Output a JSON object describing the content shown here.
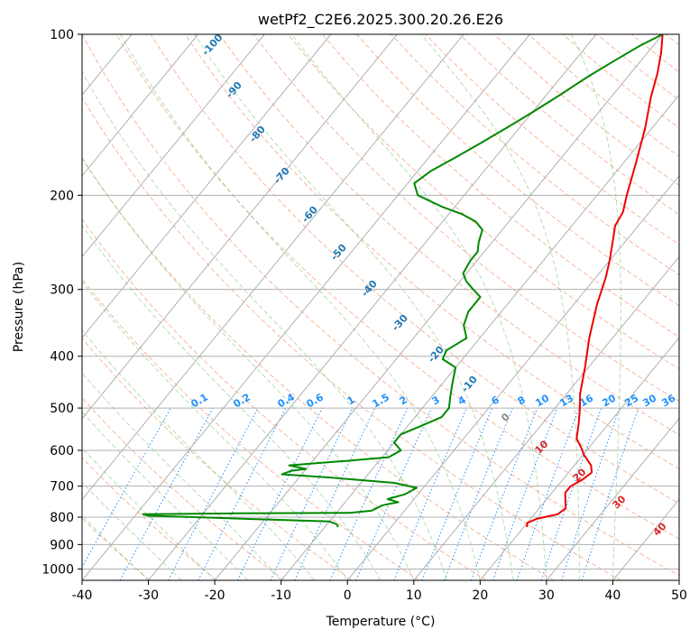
{
  "chart_data": {
    "type": "line",
    "title": "wetPf2_C2E6.2025.300.20.26.E26",
    "xlabel": "Temperature (°C)",
    "ylabel": "Pressure (hPa)",
    "xlim": [
      -40,
      50
    ],
    "ylim": [
      1050,
      100
    ],
    "y_scale": "log",
    "x_ticks": [
      -40,
      -30,
      -20,
      -10,
      0,
      10,
      20,
      30,
      40,
      50
    ],
    "y_ticks": [
      100,
      200,
      300,
      400,
      500,
      600,
      700,
      800,
      900,
      1000
    ],
    "grid": true,
    "series": [
      {
        "color": "#ee0000",
        "points": [
          [
            20.5,
            835
          ],
          [
            20,
            820
          ],
          [
            21,
            805
          ],
          [
            23.5,
            790
          ],
          [
            24,
            770
          ],
          [
            23,
            745
          ],
          [
            22,
            720
          ],
          [
            22,
            700
          ],
          [
            23,
            680
          ],
          [
            23.5,
            660
          ],
          [
            22.5,
            640
          ],
          [
            20,
            610
          ],
          [
            19,
            595
          ],
          [
            17,
            570
          ],
          [
            15.5,
            535
          ],
          [
            14,
            505
          ],
          [
            12,
            470
          ],
          [
            9.5,
            420
          ],
          [
            6.5,
            370
          ],
          [
            3.5,
            320
          ],
          [
            1.5,
            285
          ],
          [
            0,
            265
          ],
          [
            -2,
            243
          ],
          [
            -3.5,
            228
          ],
          [
            -4,
            215
          ],
          [
            -5.5,
            200
          ],
          [
            -8,
            175
          ],
          [
            -11,
            150
          ],
          [
            -14,
            131
          ],
          [
            -16,
            118
          ],
          [
            -18,
            108
          ],
          [
            -20,
            100
          ]
        ]
      },
      {
        "color": "#008800",
        "points": [
          [
            -8,
            835
          ],
          [
            -8.5,
            825
          ],
          [
            -10,
            815
          ],
          [
            -24,
            805
          ],
          [
            -38,
            795
          ],
          [
            -39,
            790
          ],
          [
            -25,
            787
          ],
          [
            -8,
            785
          ],
          [
            -5,
            778
          ],
          [
            -4,
            760
          ],
          [
            -2,
            750
          ],
          [
            -4,
            740
          ],
          [
            -2,
            725
          ],
          [
            -1,
            705
          ],
          [
            -5,
            690
          ],
          [
            -15,
            675
          ],
          [
            -23,
            665
          ],
          [
            -22,
            655
          ],
          [
            -20,
            650
          ],
          [
            -23,
            640
          ],
          [
            -15,
            628
          ],
          [
            -9,
            618
          ],
          [
            -8,
            600
          ],
          [
            -10,
            580
          ],
          [
            -10,
            560
          ],
          [
            -8,
            540
          ],
          [
            -6,
            520
          ],
          [
            -6,
            500
          ],
          [
            -7,
            480
          ],
          [
            -8,
            460
          ],
          [
            -9,
            440
          ],
          [
            -10,
            420
          ],
          [
            -13,
            405
          ],
          [
            -13.5,
            390
          ],
          [
            -12,
            370
          ],
          [
            -14,
            350
          ],
          [
            -15,
            330
          ],
          [
            -15,
            310
          ],
          [
            -17,
            300
          ],
          [
            -19,
            290
          ],
          [
            -20.5,
            280
          ],
          [
            -21,
            265
          ],
          [
            -21,
            255
          ],
          [
            -22,
            245
          ],
          [
            -23,
            232
          ],
          [
            -25,
            224
          ],
          [
            -28,
            217
          ],
          [
            -32,
            210
          ],
          [
            -37,
            200
          ],
          [
            -39,
            190
          ],
          [
            -38,
            180
          ],
          [
            -36,
            170
          ],
          [
            -34,
            160
          ],
          [
            -32,
            150
          ],
          [
            -30,
            140
          ],
          [
            -28,
            130
          ],
          [
            -26,
            120
          ],
          [
            -24,
            112
          ],
          [
            -22,
            105
          ],
          [
            -20,
            100
          ]
        ]
      }
    ],
    "annotations": {
      "dry_adiabats": [
        "-100",
        "-90",
        "-80",
        "-70",
        "-60",
        "-50",
        "-40",
        "-30",
        "-20",
        "-10"
      ],
      "mixing_ratios": [
        "0.1",
        "0.2",
        "0.4",
        "0.6",
        "1",
        "1.5",
        "2",
        "3",
        "4",
        "6",
        "8",
        "10",
        "13",
        "16",
        "20",
        "25",
        "30",
        "36"
      ],
      "moist_adiabats": [
        "0",
        "10",
        "20",
        "30",
        "40"
      ]
    }
  },
  "colors": {
    "temperature": "#ee0000",
    "dewpoint": "#008800",
    "dry_adiabat_label": "#1f77b4",
    "mixing_ratio": "#1e90ff",
    "moist_label": "#d62728",
    "freezing_label": "#888888"
  }
}
